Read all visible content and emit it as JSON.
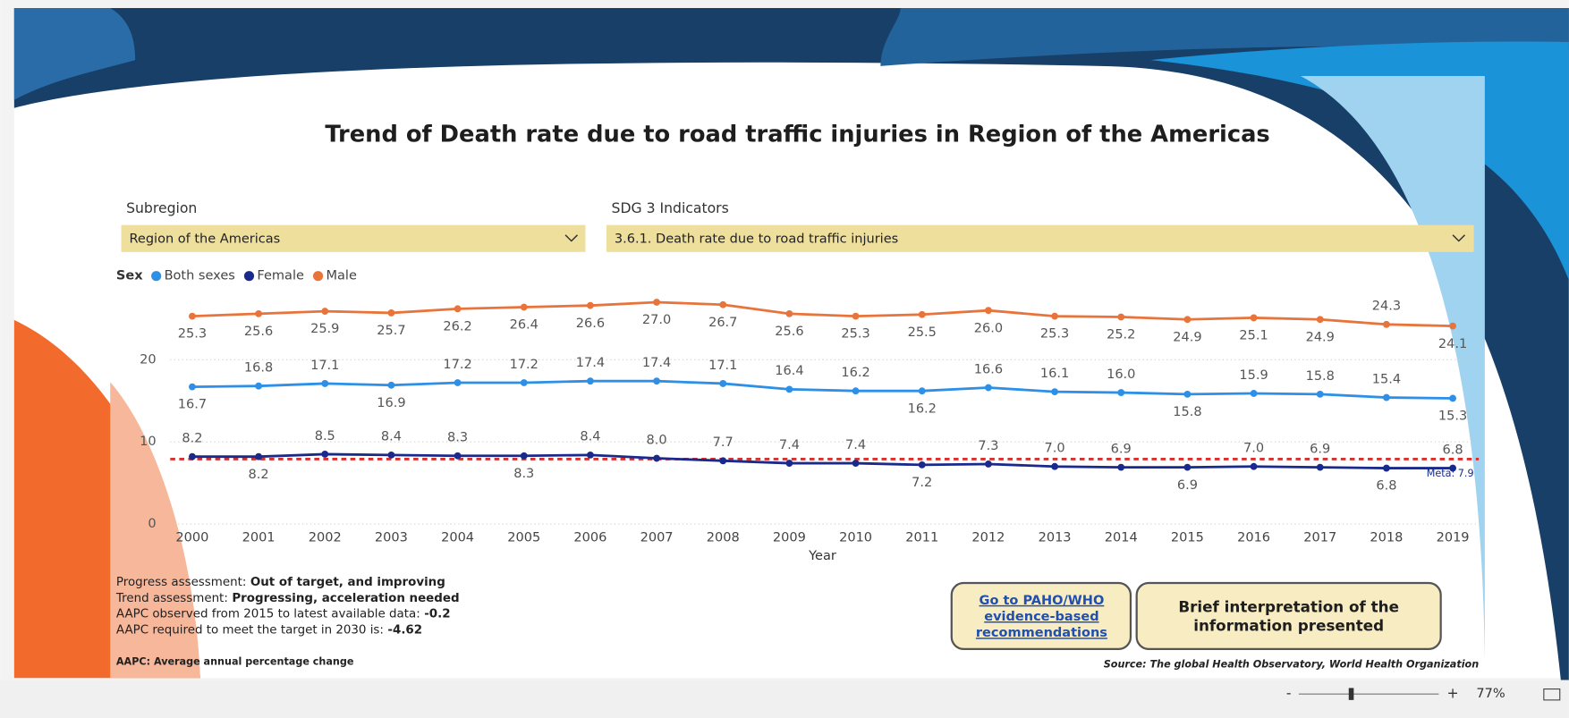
{
  "title": "Trend of Death rate due to road traffic injuries in Region of the Americas",
  "filters": [
    {
      "label": "Subregion",
      "value": "Region of the Americas"
    },
    {
      "label": "SDG 3 Indicators",
      "value": "3.6.1. Death rate due to road traffic injuries"
    }
  ],
  "chart_data": {
    "type": "line",
    "legend_title": "Sex",
    "x_label": "Year",
    "categories": [
      "2000",
      "2001",
      "2002",
      "2003",
      "2004",
      "2005",
      "2006",
      "2007",
      "2008",
      "2009",
      "2010",
      "2011",
      "2012",
      "2013",
      "2014",
      "2015",
      "2016",
      "2017",
      "2018",
      "2019"
    ],
    "ylim": [
      0,
      28
    ],
    "yticks": [
      0,
      10,
      20
    ],
    "grid": true,
    "series": [
      {
        "name": "Both sexes",
        "color": "#2d8fe6",
        "values": [
          16.7,
          16.8,
          17.1,
          16.9,
          17.2,
          17.2,
          17.4,
          17.4,
          17.1,
          16.4,
          16.2,
          16.2,
          16.6,
          16.1,
          16.0,
          15.8,
          15.9,
          15.8,
          15.4,
          15.3
        ],
        "value_labels": [
          "16.7",
          "16.8",
          "17.1",
          "16.9",
          "17.2",
          "17.2",
          "17.4",
          "17.4",
          "17.1",
          "16.4",
          "16.2",
          "16.2",
          "16.6",
          "16.1",
          "16.0",
          "15.8",
          "15.9",
          "15.8",
          "15.4",
          "15.3"
        ]
      },
      {
        "name": "Female",
        "color": "#1a2a8c",
        "values": [
          8.2,
          8.2,
          8.5,
          8.4,
          8.3,
          8.3,
          8.4,
          8.0,
          7.7,
          7.4,
          7.4,
          7.2,
          7.3,
          7.0,
          6.9,
          6.9,
          7.0,
          6.9,
          6.8,
          6.8
        ],
        "value_labels": [
          "8.2",
          "8.2",
          "8.5",
          "8.4",
          "8.3",
          "8.3",
          "8.4",
          "8.0",
          "7.7",
          "7.4",
          "7.4",
          "7.2",
          "7.3",
          "7.0",
          "6.9",
          "6.9",
          "7.0",
          "6.9",
          "6.8",
          "6.8"
        ]
      },
      {
        "name": "Male",
        "color": "#e8743b",
        "values": [
          25.3,
          25.6,
          25.9,
          25.7,
          26.2,
          26.4,
          26.6,
          27.0,
          26.7,
          25.6,
          25.3,
          25.5,
          26.0,
          25.3,
          25.2,
          24.9,
          25.1,
          24.9,
          24.3,
          24.1
        ],
        "value_labels": [
          "25.3",
          "25.6",
          "25.9",
          "25.7",
          "26.2",
          "26.4",
          "26.6",
          "27.0",
          "26.7",
          "25.6",
          "25.3",
          "25.5",
          "26.0",
          "25.3",
          "25.2",
          "24.9",
          "25.1",
          "24.9",
          "24.3",
          "24.1"
        ]
      }
    ],
    "target": {
      "value": 7.9,
      "label": "Meta: 7.9",
      "color": "#d9302c"
    }
  },
  "assessment": [
    {
      "label": "Progress assessment:",
      "value": "Out of target, and improving"
    },
    {
      "label": "Trend assessment:",
      "value": "Progressing, acceleration needed"
    },
    {
      "label": "AAPC observed from 2015 to latest available data:",
      "value": -0.2
    },
    {
      "label": "AAPC required to meet the target in 2030 is:",
      "value": -4.62
    }
  ],
  "note": "AAPC: Average annual percentage change",
  "buttons": [
    "Go to PAHO/WHO evidence-based recommendations",
    "Brief interpretation of the information presented"
  ],
  "source": "Source: The global Health Observatory, World Health Organization",
  "zoom": "77%"
}
